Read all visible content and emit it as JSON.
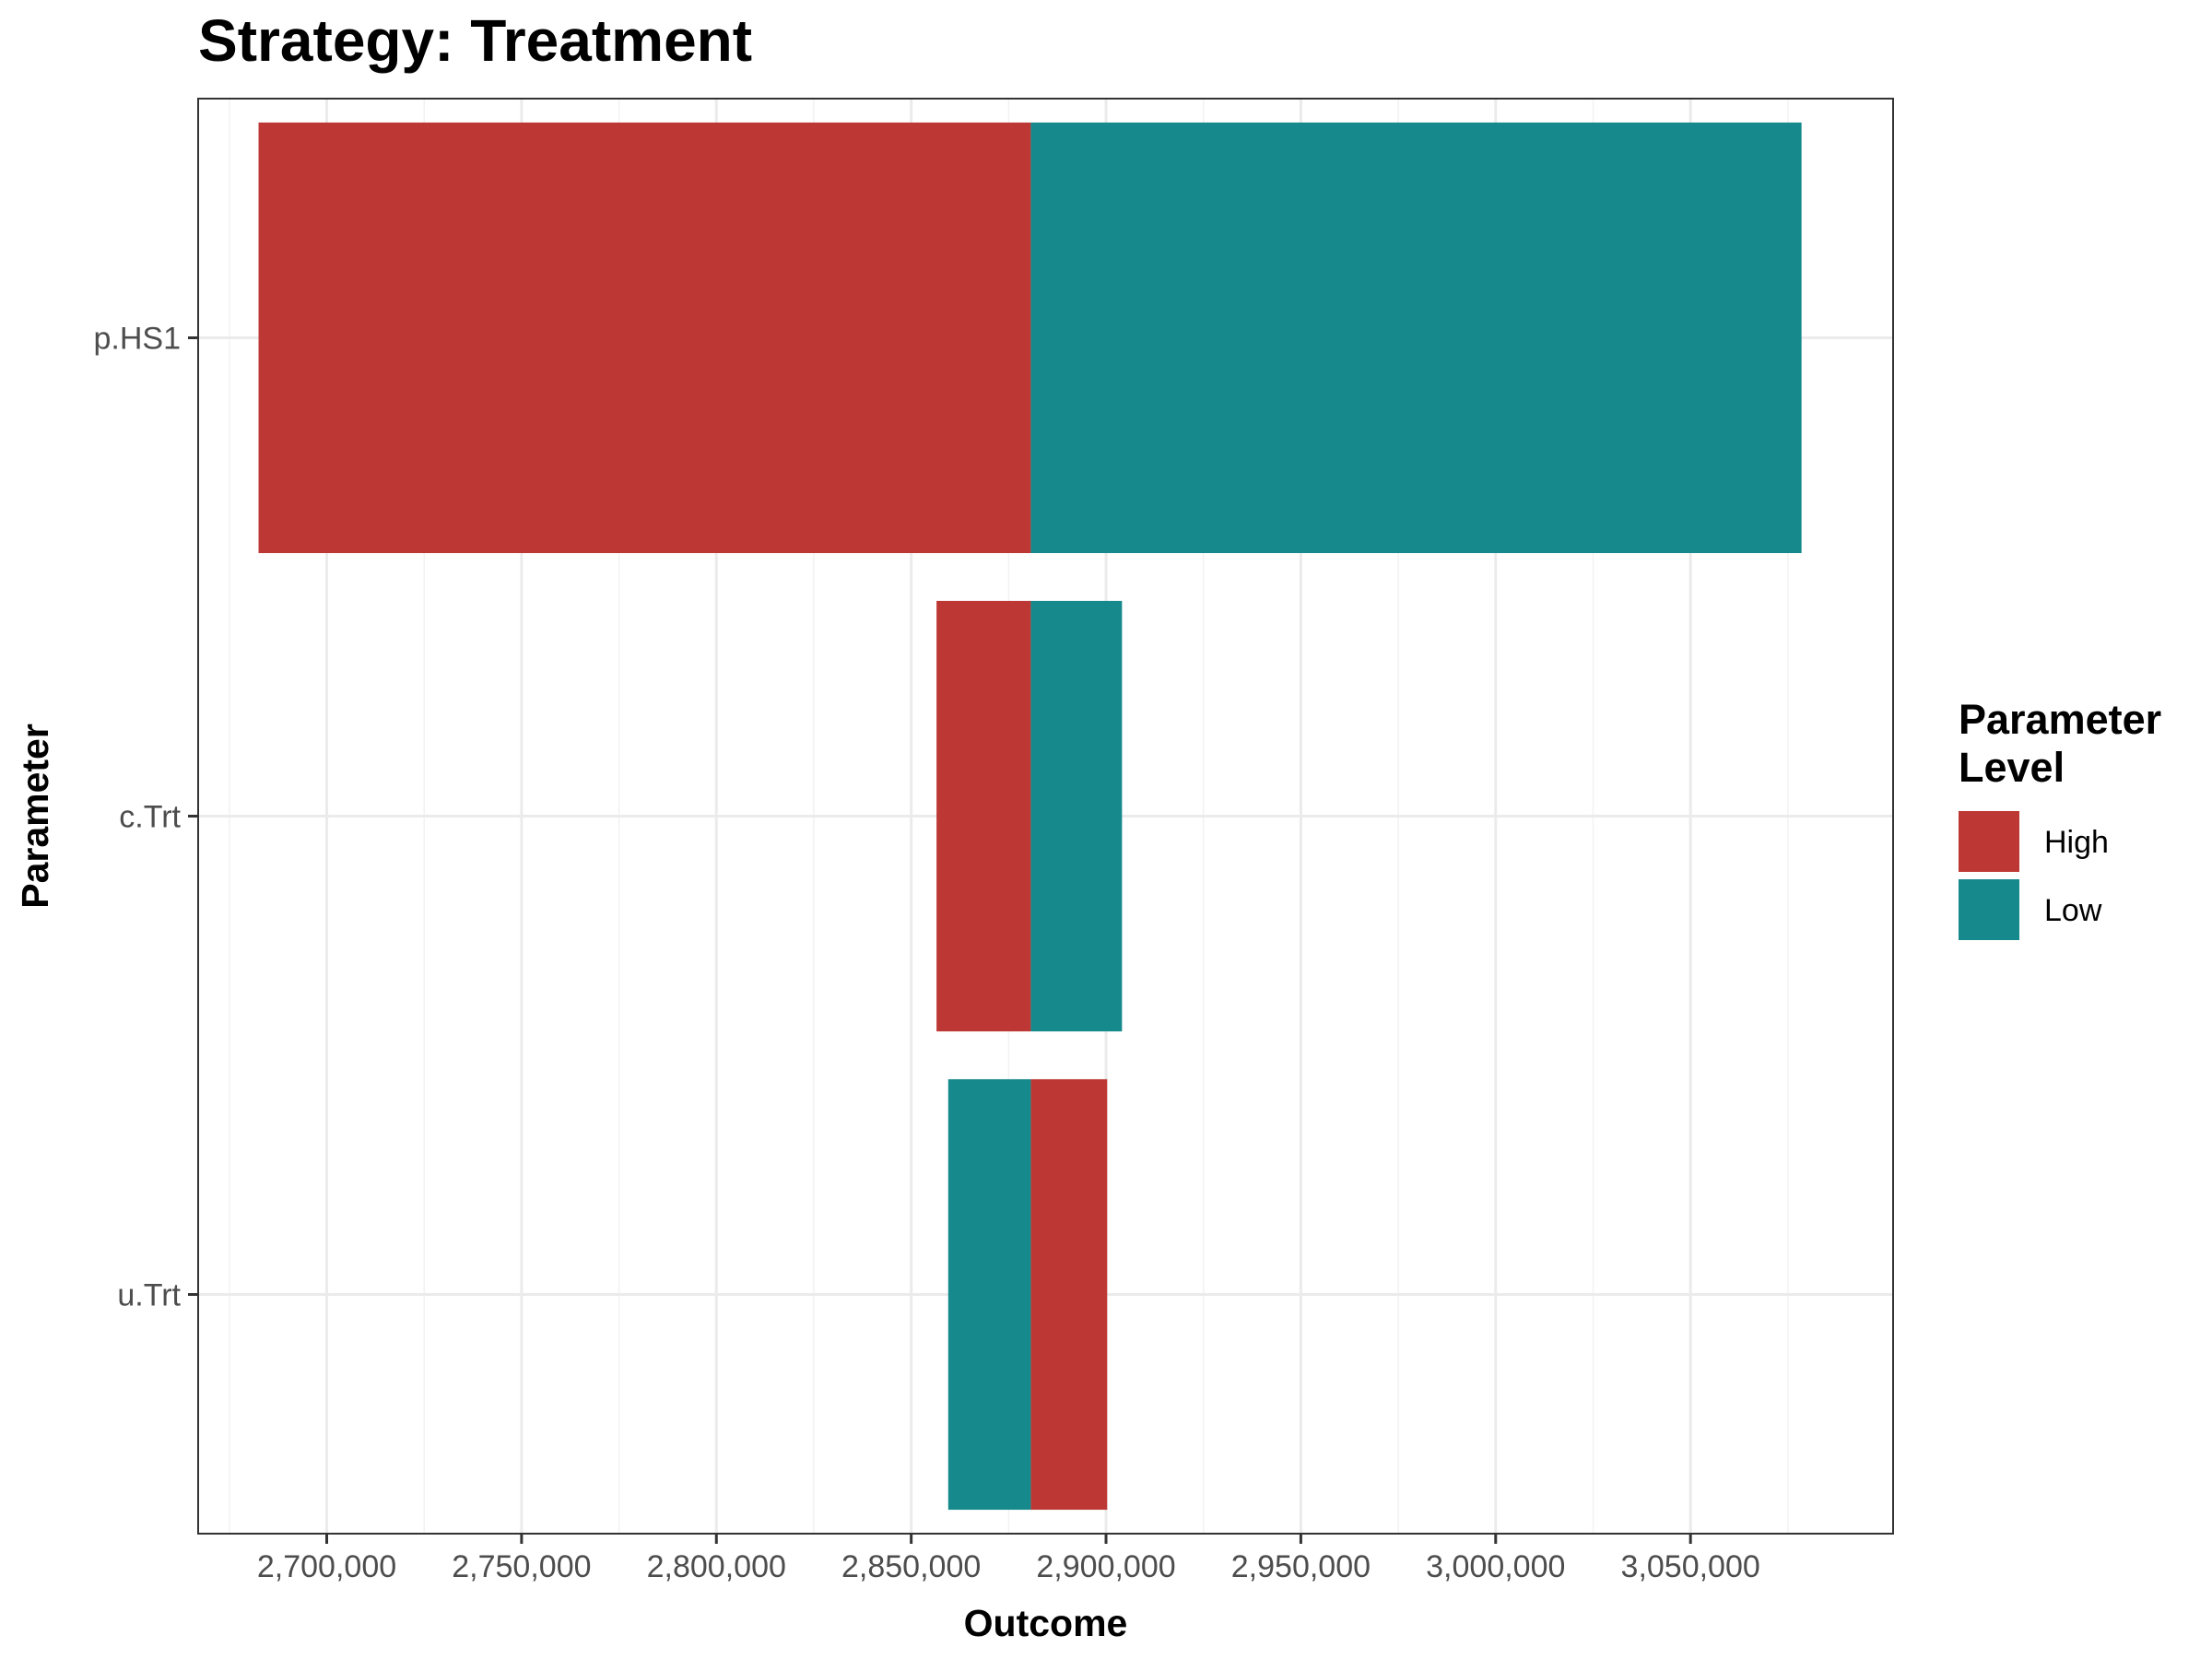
{
  "chart_data": {
    "type": "bar",
    "orientation": "horizontal",
    "subtype": "tornado",
    "title": "Strategy: Treatment",
    "xlabel": "Outcome",
    "ylabel": "Parameter",
    "base_value": 2880700,
    "xlim": [
      2667000,
      3102000
    ],
    "x_ticks": [
      2700000,
      2750000,
      2800000,
      2850000,
      2900000,
      2950000,
      3000000,
      3050000
    ],
    "x_tick_labels": [
      "2,700,000",
      "2,750,000",
      "2,800,000",
      "2,850,000",
      "2,900,000",
      "2,950,000",
      "3,000,000",
      "3,050,000"
    ],
    "categories": [
      "p.HS1",
      "c.Trt",
      "u.Trt"
    ],
    "series": [
      {
        "name": "High",
        "color": "#bd3834",
        "values": [
          2682500,
          2856500,
          2900300
        ]
      },
      {
        "name": "Low",
        "color": "#15898c",
        "values": [
          3078500,
          2904100,
          2859500
        ]
      }
    ],
    "legend": {
      "title": "Parameter\nLevel",
      "title_lines": [
        "Parameter",
        "Level"
      ],
      "position": "right",
      "entries": [
        "High",
        "Low"
      ]
    },
    "grid": true
  }
}
